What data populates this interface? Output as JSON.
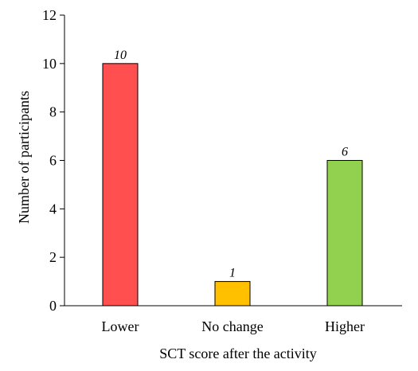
{
  "chart_data": {
    "type": "bar",
    "categories": [
      "Lower",
      "No change",
      "Higher"
    ],
    "values": [
      10,
      1,
      6
    ],
    "data_labels": [
      "10",
      "1",
      "6"
    ],
    "colors": [
      "#ff4f4f",
      "#ffc000",
      "#92d050"
    ],
    "xlabel": "SCT score after the activity",
    "ylabel": "Number of participants",
    "ylim": [
      0,
      12
    ],
    "yticks": [
      0,
      2,
      4,
      6,
      8,
      10,
      12
    ],
    "grid": false,
    "legend": "none"
  }
}
